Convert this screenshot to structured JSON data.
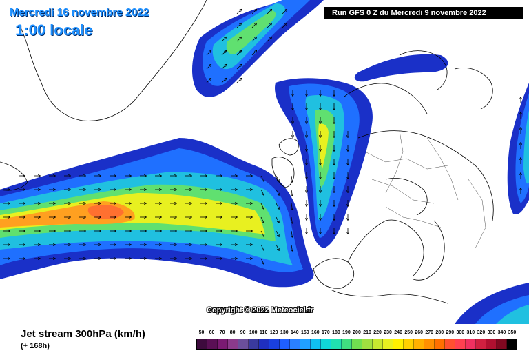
{
  "header": {
    "date_line": "Mercredi 16 novembre 2022",
    "time_line": "1:00 locale",
    "run_info": "Run GFS 0 Z du Mercredi 9 novembre 2022"
  },
  "map": {
    "copyright": "Copyright © 2022 Meteociel.fr"
  },
  "footer": {
    "parameter": "Jet stream 300hPa (km/h)",
    "lead_time": "(+ 168h)"
  },
  "legend": {
    "labels": [
      "50",
      "60",
      "70",
      "80",
      "90",
      "100",
      "110",
      "120",
      "130",
      "140",
      "150",
      "160",
      "170",
      "180",
      "190",
      "200",
      "210",
      "220",
      "230",
      "240",
      "250",
      "260",
      "270",
      "280",
      "290",
      "300",
      "310",
      "320",
      "330",
      "340",
      "350"
    ],
    "colors": [
      "#3d0a3d",
      "#5a0f55",
      "#7a1a72",
      "#8b3a8b",
      "#6b4f9a",
      "#3a3a9e",
      "#1f2fbf",
      "#1a40e0",
      "#1f5fff",
      "#2a80ff",
      "#20a0ff",
      "#10c0f0",
      "#10d8d8",
      "#20e0b0",
      "#40e080",
      "#70e050",
      "#a0e040",
      "#c8e830",
      "#e8f020",
      "#fff000",
      "#ffd000",
      "#ffb000",
      "#ff9000",
      "#ff7000",
      "#ff5030",
      "#ff4050",
      "#f03060",
      "#d02040",
      "#b01030",
      "#800820",
      "#000000"
    ]
  }
}
